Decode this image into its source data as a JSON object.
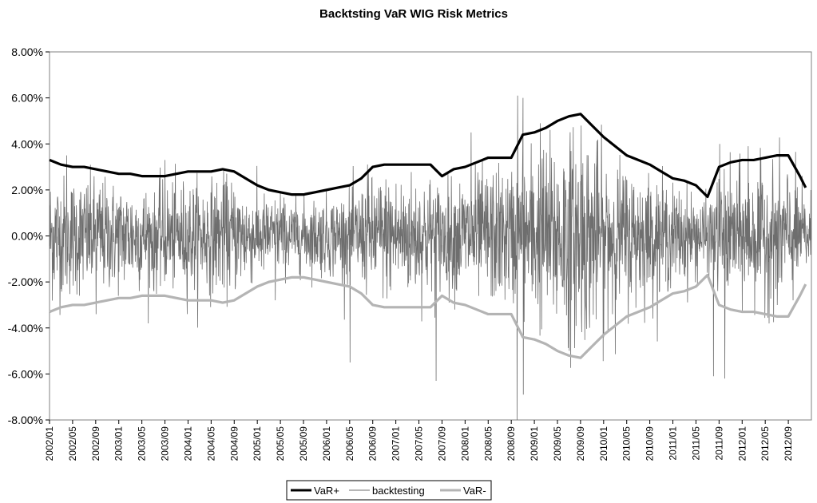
{
  "chart_data": {
    "type": "line",
    "title": "Backtsting VaR WIG Risk Metrics",
    "xlabel": "",
    "ylabel": "",
    "ylim": [
      -0.08,
      0.08
    ],
    "y_ticks": [
      "8.00%",
      "6.00%",
      "4.00%",
      "2.00%",
      "0.00%",
      "-2.00%",
      "-4.00%",
      "-6.00%",
      "-8.00%"
    ],
    "x_ticks": [
      "2002/01",
      "2002/05",
      "2002/09",
      "2003/01",
      "2003/05",
      "2003/09",
      "2004/01",
      "2004/05",
      "2004/09",
      "2005/01",
      "2005/05",
      "2005/09",
      "2006/01",
      "2006/05",
      "2006/09",
      "2007/01",
      "2007/05",
      "2007/09",
      "2008/01",
      "2008/05",
      "2008/09",
      "2009/01",
      "2009/05",
      "2009/09",
      "2010/01",
      "2010/05",
      "2010/09",
      "2011/01",
      "2011/05",
      "2011/09",
      "2012/01",
      "2012/05",
      "2012/09"
    ],
    "grid": false,
    "legend_position": "bottom",
    "series": [
      {
        "name": "VaR+",
        "color": "#000000",
        "x": [
          "2002/01",
          "2002/03",
          "2002/05",
          "2002/07",
          "2002/09",
          "2002/11",
          "2003/01",
          "2003/03",
          "2003/05",
          "2003/07",
          "2003/09",
          "2003/11",
          "2004/01",
          "2004/03",
          "2004/05",
          "2004/07",
          "2004/09",
          "2004/11",
          "2005/01",
          "2005/03",
          "2005/05",
          "2005/07",
          "2005/09",
          "2005/11",
          "2006/01",
          "2006/03",
          "2006/05",
          "2006/07",
          "2006/09",
          "2006/11",
          "2007/01",
          "2007/03",
          "2007/05",
          "2007/07",
          "2007/09",
          "2007/11",
          "2008/01",
          "2008/03",
          "2008/05",
          "2008/07",
          "2008/09",
          "2008/11",
          "2009/01",
          "2009/03",
          "2009/05",
          "2009/07",
          "2009/09",
          "2009/11",
          "2010/01",
          "2010/03",
          "2010/05",
          "2010/07",
          "2010/09",
          "2010/11",
          "2011/01",
          "2011/03",
          "2011/05",
          "2011/07",
          "2011/09",
          "2011/11",
          "2012/01",
          "2012/03",
          "2012/05",
          "2012/07",
          "2012/09",
          "2012/11",
          "2012/12"
        ],
        "values": [
          0.033,
          0.031,
          0.03,
          0.03,
          0.029,
          0.028,
          0.027,
          0.027,
          0.026,
          0.026,
          0.026,
          0.027,
          0.028,
          0.028,
          0.028,
          0.029,
          0.028,
          0.025,
          0.022,
          0.02,
          0.019,
          0.018,
          0.018,
          0.019,
          0.02,
          0.021,
          0.022,
          0.025,
          0.03,
          0.031,
          0.031,
          0.031,
          0.031,
          0.031,
          0.026,
          0.029,
          0.03,
          0.032,
          0.034,
          0.034,
          0.034,
          0.044,
          0.045,
          0.047,
          0.05,
          0.052,
          0.053,
          0.048,
          0.043,
          0.039,
          0.035,
          0.033,
          0.031,
          0.028,
          0.025,
          0.024,
          0.022,
          0.017,
          0.03,
          0.032,
          0.033,
          0.033,
          0.034,
          0.035,
          0.035,
          0.026,
          0.021
        ]
      },
      {
        "name": "backtesting",
        "color": "#6e6e6e",
        "x": [
          "2002/01",
          "2012/12"
        ],
        "values": [
          0.0,
          0.0
        ]
      },
      {
        "name": "VaR-",
        "color": "#b4b4b4",
        "x": [
          "2002/01",
          "2002/03",
          "2002/05",
          "2002/07",
          "2002/09",
          "2002/11",
          "2003/01",
          "2003/03",
          "2003/05",
          "2003/07",
          "2003/09",
          "2003/11",
          "2004/01",
          "2004/03",
          "2004/05",
          "2004/07",
          "2004/09",
          "2004/11",
          "2005/01",
          "2005/03",
          "2005/05",
          "2005/07",
          "2005/09",
          "2005/11",
          "2006/01",
          "2006/03",
          "2006/05",
          "2006/07",
          "2006/09",
          "2006/11",
          "2007/01",
          "2007/03",
          "2007/05",
          "2007/07",
          "2007/09",
          "2007/11",
          "2008/01",
          "2008/03",
          "2008/05",
          "2008/07",
          "2008/09",
          "2008/11",
          "2009/01",
          "2009/03",
          "2009/05",
          "2009/07",
          "2009/09",
          "2009/11",
          "2010/01",
          "2010/03",
          "2010/05",
          "2010/07",
          "2010/09",
          "2010/11",
          "2011/01",
          "2011/03",
          "2011/05",
          "2011/07",
          "2011/09",
          "2011/11",
          "2012/01",
          "2012/03",
          "2012/05",
          "2012/07",
          "2012/09",
          "2012/11",
          "2012/12"
        ],
        "values": [
          -0.033,
          -0.031,
          -0.03,
          -0.03,
          -0.029,
          -0.028,
          -0.027,
          -0.027,
          -0.026,
          -0.026,
          -0.026,
          -0.027,
          -0.028,
          -0.028,
          -0.028,
          -0.029,
          -0.028,
          -0.025,
          -0.022,
          -0.02,
          -0.019,
          -0.018,
          -0.018,
          -0.019,
          -0.02,
          -0.021,
          -0.022,
          -0.025,
          -0.03,
          -0.031,
          -0.031,
          -0.031,
          -0.031,
          -0.031,
          -0.026,
          -0.029,
          -0.03,
          -0.032,
          -0.034,
          -0.034,
          -0.034,
          -0.044,
          -0.045,
          -0.047,
          -0.05,
          -0.052,
          -0.053,
          -0.048,
          -0.043,
          -0.039,
          -0.035,
          -0.033,
          -0.031,
          -0.028,
          -0.025,
          -0.024,
          -0.022,
          -0.017,
          -0.03,
          -0.032,
          -0.033,
          -0.033,
          -0.034,
          -0.035,
          -0.035,
          -0.026,
          -0.021
        ]
      }
    ],
    "backtesting_spikes": {
      "x": [
        "2002/04",
        "2002/09",
        "2003/07",
        "2003/09",
        "2004/07",
        "2005/04",
        "2005/05",
        "2006/05",
        "2006/08",
        "2007/08",
        "2008/02",
        "2008/10",
        "2008/10",
        "2008/11",
        "2008/11",
        "2009/02",
        "2009/07",
        "2009/09",
        "2010/01",
        "2011/08",
        "2011/09",
        "2011/10",
        "2012/02",
        "2012/07"
      ],
      "values": [
        0.035,
        -0.034,
        -0.024,
        0.033,
        0.022,
        -0.028,
        0.019,
        -0.055,
        0.031,
        -0.063,
        0.045,
        0.061,
        -0.08,
        0.06,
        -0.069,
        0.049,
        -0.05,
        0.048,
        -0.044,
        -0.061,
        0.04,
        -0.062,
        0.039,
        -0.03
      ]
    }
  }
}
